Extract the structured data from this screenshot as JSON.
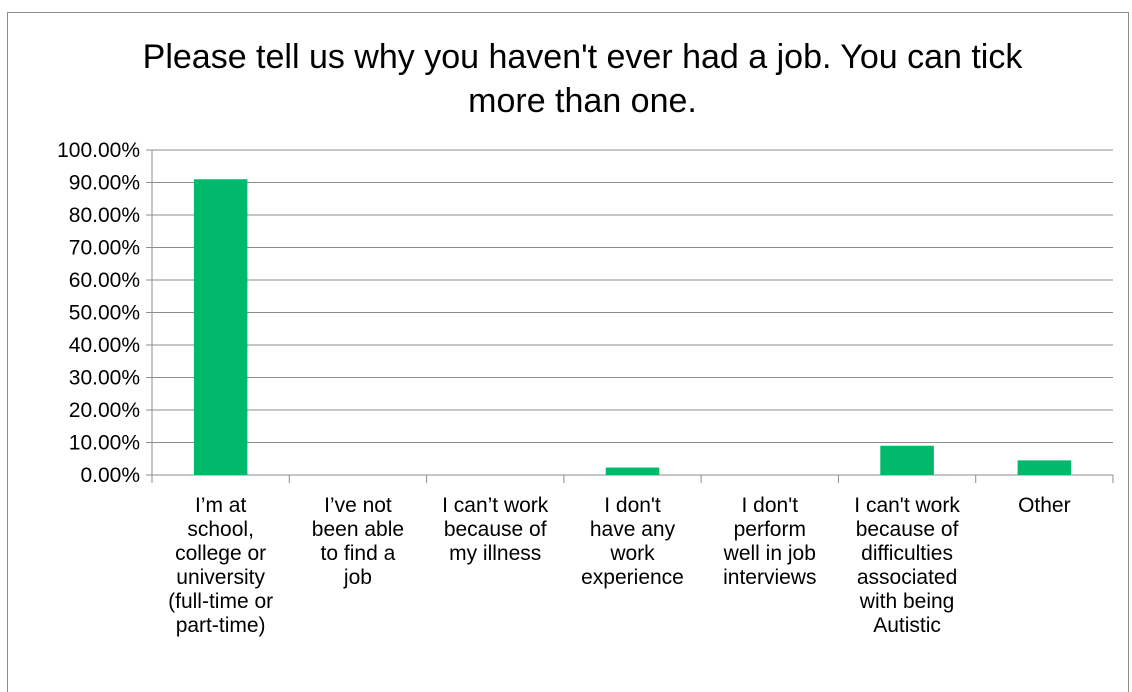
{
  "chart_data": {
    "type": "bar",
    "title": "Please tell us why you haven't ever had a job. You can tick more than one.",
    "categories": [
      "I’m at school, college or university (full-time or part-time)",
      "I’ve not been able to find a job",
      "I can’t work because of my illness",
      "I don't have any work experience",
      "I don't perform well in job interviews",
      "I can't work because of difficulties associated with being Autistic",
      "Other"
    ],
    "category_lines": [
      "I’m at\nschool,\ncollege or\nuniversity\n(full-time or\npart-time)",
      "I’ve not\nbeen able\nto find a\njob",
      "I can’t work\nbecause of\nmy illness",
      "I don't\nhave any\nwork\nexperience",
      "I don't\nperform\nwell in job\ninterviews",
      "I can't work\nbecause of\ndifficulties\nassociated\nwith being\nAutistic",
      "Other"
    ],
    "values": [
      0.91,
      0.0,
      0.0,
      0.023,
      0.0,
      0.09,
      0.045
    ],
    "ylim": [
      0,
      1
    ],
    "yticks": [
      0,
      0.1,
      0.2,
      0.3,
      0.4,
      0.5,
      0.6,
      0.7,
      0.8,
      0.9,
      1.0
    ],
    "ytick_labels": [
      "0.00%",
      "10.00%",
      "20.00%",
      "30.00%",
      "40.00%",
      "50.00%",
      "60.00%",
      "70.00%",
      "80.00%",
      "90.00%",
      "100.00%"
    ],
    "xlabel": "",
    "ylabel": "",
    "grid": true,
    "legend": "none",
    "bar_color": "#00b96b",
    "grid_color": "#8c8c8c"
  }
}
